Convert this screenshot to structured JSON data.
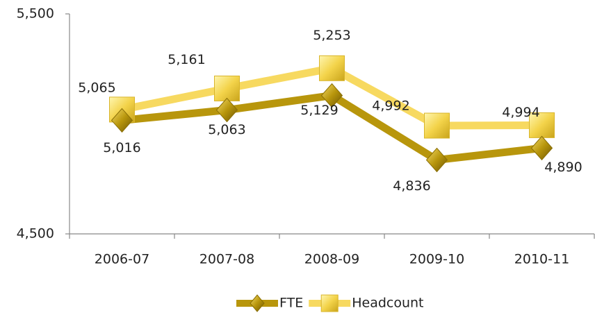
{
  "chart_data": {
    "type": "line",
    "categories": [
      "2006-07",
      "2007-08",
      "2008-09",
      "2009-10",
      "2010-11"
    ],
    "series": [
      {
        "name": "FTE",
        "color": "#b8960c",
        "marker": "diamond",
        "values": [
          5016,
          5063,
          5129,
          4836,
          4890
        ],
        "value_labels": [
          "5,016",
          "5,063",
          "5,129",
          "4,836",
          "4,890"
        ]
      },
      {
        "name": "Headcount",
        "color": "#f7d960",
        "marker": "square",
        "values": [
          5065,
          5161,
          5253,
          4992,
          4994
        ],
        "value_labels": [
          "5,065",
          "5,161",
          "5,253",
          "4,992",
          "4,994"
        ]
      }
    ],
    "ylim": [
      4500,
      5500
    ],
    "yticks": [
      {
        "value": 4500,
        "label": "4,500"
      },
      {
        "value": 5500,
        "label": "5,500"
      }
    ],
    "legend": "bottom"
  }
}
